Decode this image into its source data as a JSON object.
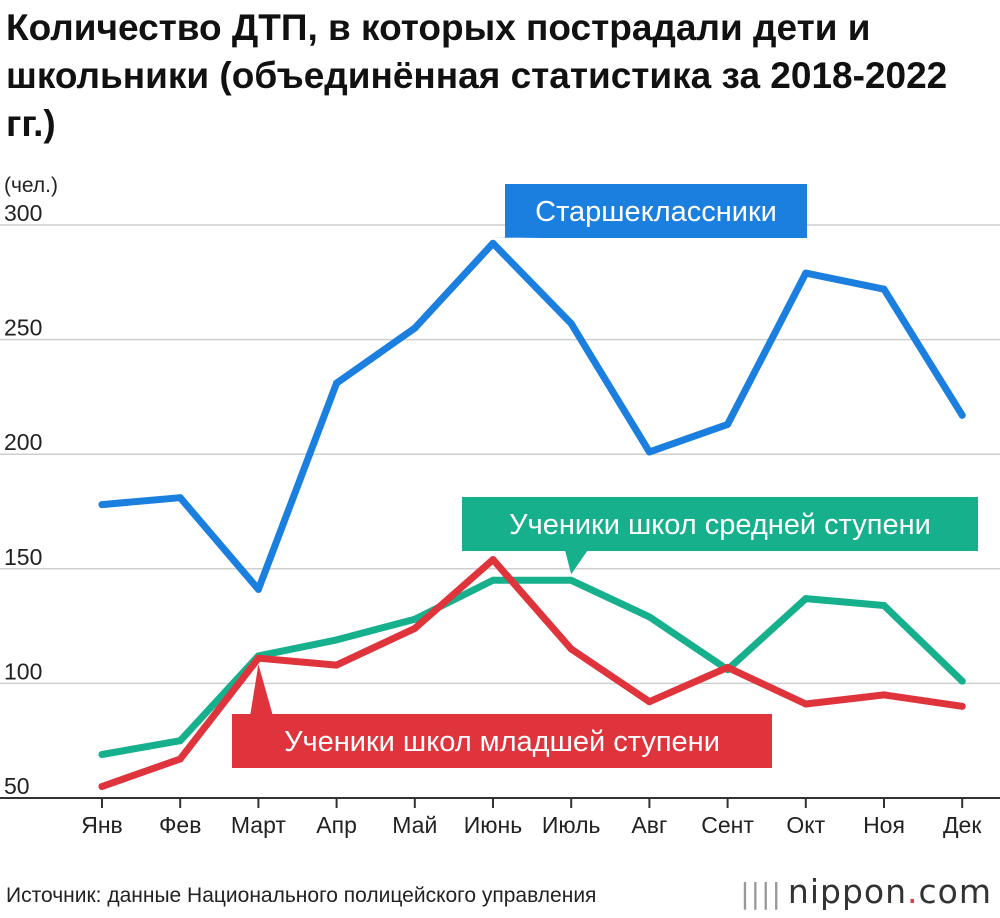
{
  "title": "Количество ДТП, в которых пострадали дети и школьники (объединённая статистика за 2018-2022 гг.)",
  "source": "Источник: данные Национального полицейского управления",
  "brand": {
    "name": "nippon",
    "dot": ".",
    "suffix": "com"
  },
  "chart_data": {
    "type": "line",
    "unit_label": "(чел.)",
    "categories": [
      "Янв",
      "Фев",
      "Март",
      "Апр",
      "Май",
      "Июнь",
      "Июль",
      "Авг",
      "Сент",
      "Окт",
      "Ноя",
      "Дек"
    ],
    "ylim": [
      50,
      300
    ],
    "yticks": [
      50,
      100,
      150,
      200,
      250,
      300
    ],
    "grid": true,
    "series": [
      {
        "name": "Старшеклассники",
        "color": "#1a7fdf",
        "values": [
          178,
          181,
          141,
          231,
          255,
          292,
          257,
          201,
          213,
          279,
          272,
          217
        ],
        "callout_index": 5
      },
      {
        "name": "Ученики школ средней ступени",
        "color": "#16b08c",
        "values": [
          69,
          75,
          112,
          119,
          128,
          145,
          145,
          129,
          106,
          137,
          134,
          101
        ],
        "callout_index": 6
      },
      {
        "name": "Ученики школ младшей ступени",
        "color": "#e0343c",
        "values": [
          55,
          67,
          111,
          108,
          124,
          154,
          115,
          92,
          107,
          91,
          95,
          90
        ],
        "callout_index": 2
      }
    ]
  }
}
